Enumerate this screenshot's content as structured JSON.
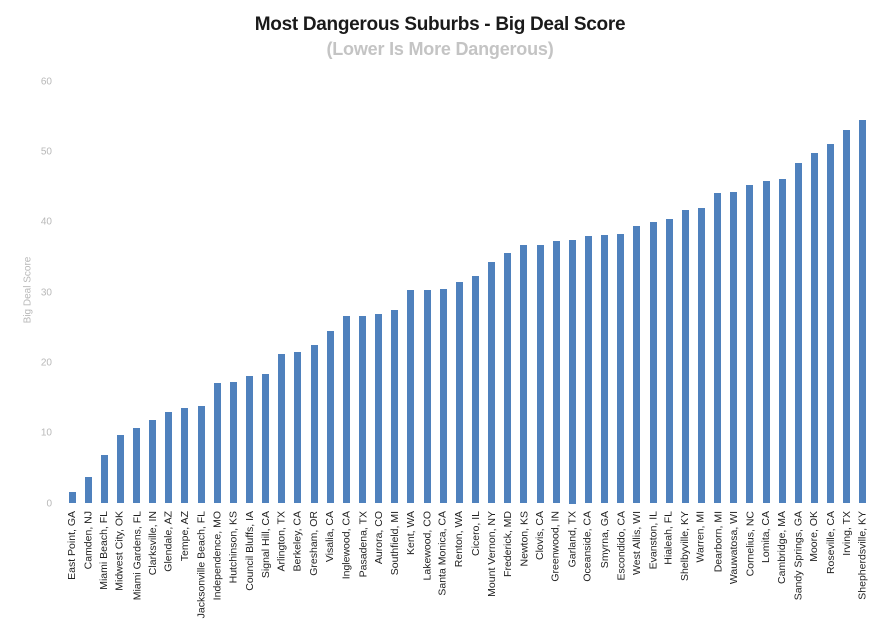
{
  "chart_data": {
    "type": "bar",
    "title": "Most Dangerous Suburbs - Big Deal Score",
    "subtitle": "(Lower Is More Dangerous)",
    "xlabel": "",
    "ylabel": "Big Deal Score",
    "ylim": [
      0,
      60
    ],
    "yticks": [
      0,
      10,
      20,
      30,
      40,
      50,
      60
    ],
    "grid": false,
    "legend": null,
    "bar_color": "#4F81BD",
    "categories": [
      "East Point, GA",
      "Camden, NJ",
      "Miami Beach, FL",
      "Midwest City, OK",
      "Miami Gardens, FL",
      "Clarksville, IN",
      "Glendale, AZ",
      "Tempe, AZ",
      "Jacksonville Beach, FL",
      "Independence, MO",
      "Hutchinson, KS",
      "Council Bluffs, IA",
      "Signal Hill, CA",
      "Arlington, TX",
      "Berkeley, CA",
      "Gresham, OR",
      "Visalia, CA",
      "Inglewood, CA",
      "Pasadena, TX",
      "Aurora, CO",
      "Southfield, MI",
      "Kent, WA",
      "Lakewood, CO",
      "Santa Monica, CA",
      "Renton, WA",
      "Cicero, IL",
      "Mount Vernon, NY",
      "Frederick, MD",
      "Newton, KS",
      "Clovis, CA",
      "Greenwood, IN",
      "Garland, TX",
      "Oceanside, CA",
      "Smyrna, GA",
      "Escondido, CA",
      "West Allis, WI",
      "Evanston, IL",
      "Hialeah, FL",
      "Shelbyville, KY",
      "Warren, MI",
      "Dearborn, MI",
      "Wauwatosa, WI",
      "Cornelius, NC",
      "Lomita, CA",
      "Cambridge, MA",
      "Sandy Springs, GA",
      "Moore, OK",
      "Roseville, CA",
      "Irving, TX",
      "Shepherdsville, KY"
    ],
    "values": [
      1.7,
      3.8,
      6.9,
      9.7,
      10.7,
      11.9,
      13.0,
      13.6,
      13.8,
      17.1,
      17.3,
      18.1,
      18.4,
      21.3,
      21.6,
      22.6,
      24.6,
      26.7,
      26.7,
      26.9,
      27.5,
      30.3,
      30.3,
      30.5,
      31.5,
      32.3,
      34.3,
      35.6,
      36.7,
      36.7,
      37.3,
      37.5,
      38.1,
      38.2,
      38.4,
      39.5,
      40.1,
      40.5,
      41.8,
      42.1,
      44.1,
      44.3,
      45.3,
      45.9,
      46.1,
      48.5,
      49.8,
      51.2,
      53.2,
      54.5
    ]
  }
}
